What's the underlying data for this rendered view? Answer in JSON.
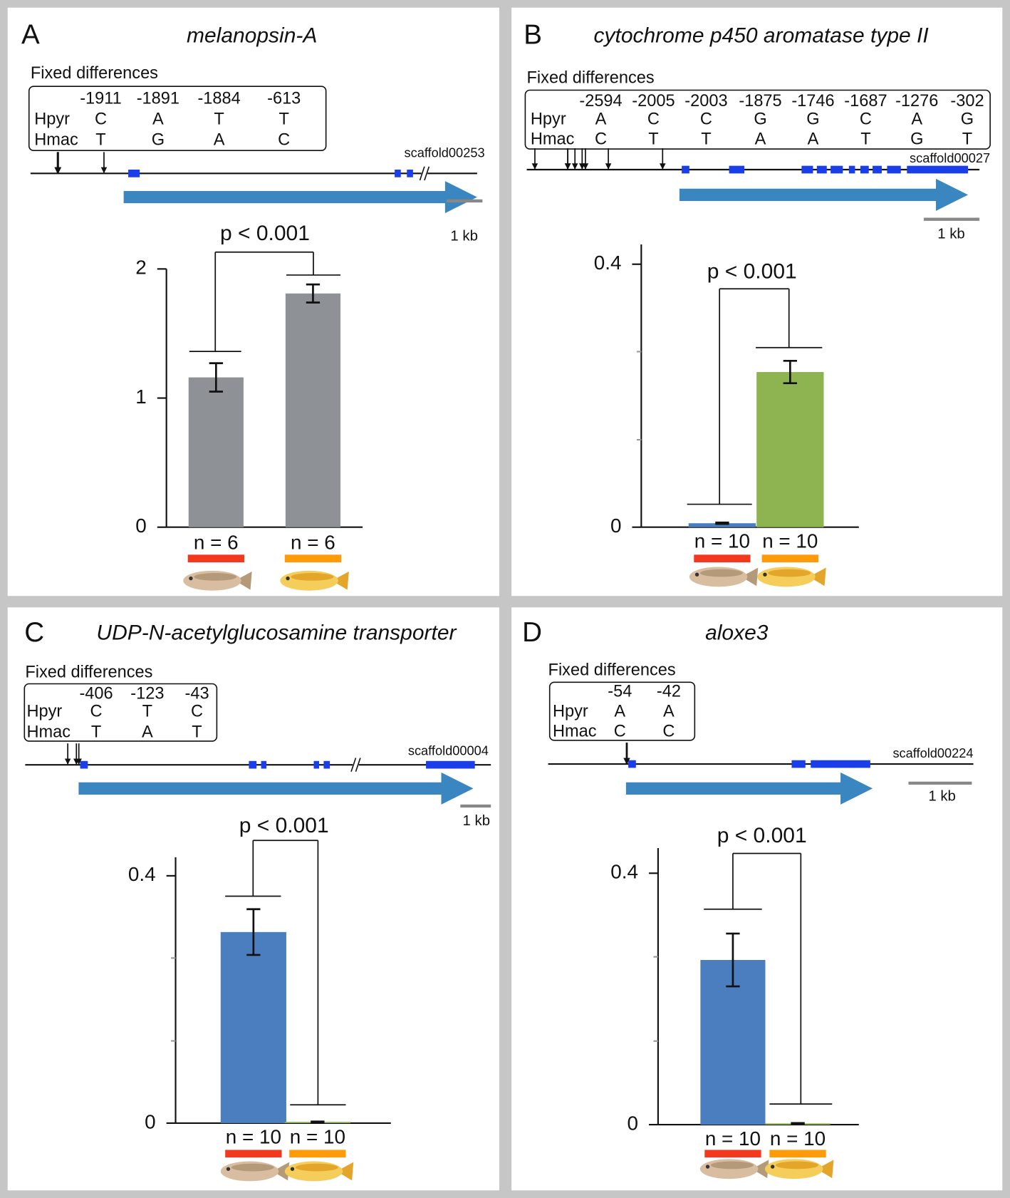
{
  "chart_data": [
    {
      "type": "bar",
      "panel": "A",
      "title": "melanopsin-A",
      "fixed_differences": {
        "label": "Fixed differences",
        "positions": [
          -1911,
          -1891,
          -1884,
          -613
        ],
        "rows": [
          {
            "name": "Hpyr",
            "bases": [
              "C",
              "A",
              "T",
              "T"
            ]
          },
          {
            "name": "Hmac",
            "bases": [
              "T",
              "G",
              "A",
              "C"
            ]
          }
        ]
      },
      "scaffold": "scaffold00253",
      "scale_label": "1 kb",
      "annotation": "p < 0.001",
      "categories": [
        "n = 6",
        "n = 6"
      ],
      "values": [
        1.16,
        1.81
      ],
      "errors": [
        0.11,
        0.07
      ],
      "colors": [
        "#8e9196",
        "#8e9196"
      ],
      "ylim": [
        0,
        2
      ],
      "yticks": [
        0,
        1,
        2
      ]
    },
    {
      "type": "bar",
      "panel": "B",
      "title": "cytochrome p450 aromatase type II",
      "fixed_differences": {
        "label": "Fixed differences",
        "positions": [
          -2594,
          -2005,
          -2003,
          -1875,
          -1746,
          -1687,
          -1276,
          -302
        ],
        "rows": [
          {
            "name": "Hpyr",
            "bases": [
              "A",
              "C",
              "C",
              "G",
              "G",
              "C",
              "A",
              "G"
            ]
          },
          {
            "name": "Hmac",
            "bases": [
              "C",
              "T",
              "T",
              "A",
              "A",
              "T",
              "G",
              "T"
            ]
          }
        ]
      },
      "scaffold": "scaffold00027",
      "scale_label": "1 kb",
      "annotation": "p < 0.001",
      "categories": [
        "n = 10",
        "n = 10"
      ],
      "values": [
        0.006,
        0.236
      ],
      "errors": [
        0.001,
        0.017
      ],
      "colors": [
        "#4a7ebf",
        "#8db451"
      ],
      "ylim": [
        0,
        0.43
      ],
      "yticks": [
        0,
        0.4
      ],
      "minor_yticks": [
        0.133,
        0.267
      ]
    },
    {
      "type": "bar",
      "panel": "C",
      "title": "UDP-N-acetylglucosamine transporter",
      "fixed_differences": {
        "label": "Fixed differences",
        "positions": [
          -406,
          -123,
          -43
        ],
        "rows": [
          {
            "name": "Hpyr",
            "bases": [
              "C",
              "T",
              "C"
            ]
          },
          {
            "name": "Hmac",
            "bases": [
              "T",
              "A",
              "T"
            ]
          }
        ]
      },
      "scaffold": "scaffold00004",
      "scale_label": "1 kb",
      "annotation": "p < 0.001",
      "categories": [
        "n = 10",
        "n = 10"
      ],
      "values": [
        0.309,
        0.002
      ],
      "errors": [
        0.037,
        0.0005
      ],
      "colors": [
        "#4a7ebf",
        "#8db451"
      ],
      "ylim": [
        0,
        0.43
      ],
      "yticks": [
        0,
        0.4
      ],
      "minor_yticks": [
        0.133,
        0.267
      ]
    },
    {
      "type": "bar",
      "panel": "D",
      "title": "aloxe3",
      "fixed_differences": {
        "label": "Fixed differences",
        "positions": [
          -54,
          -42
        ],
        "rows": [
          {
            "name": "Hpyr",
            "bases": [
              "A",
              "A"
            ]
          },
          {
            "name": "Hmac",
            "bases": [
              "C",
              "C"
            ]
          }
        ]
      },
      "scaffold": "scaffold00224",
      "scale_label": "1 kb",
      "annotation": "p < 0.001",
      "categories": [
        "n = 10",
        "n = 10"
      ],
      "values": [
        0.262,
        0.002
      ],
      "errors": [
        0.042,
        0.0005
      ],
      "colors": [
        "#4a7ebf",
        "#8db451"
      ],
      "ylim": [
        0,
        0.44
      ],
      "yticks": [
        0,
        0.4
      ],
      "minor_yticks": [
        0.133,
        0.267
      ]
    }
  ]
}
